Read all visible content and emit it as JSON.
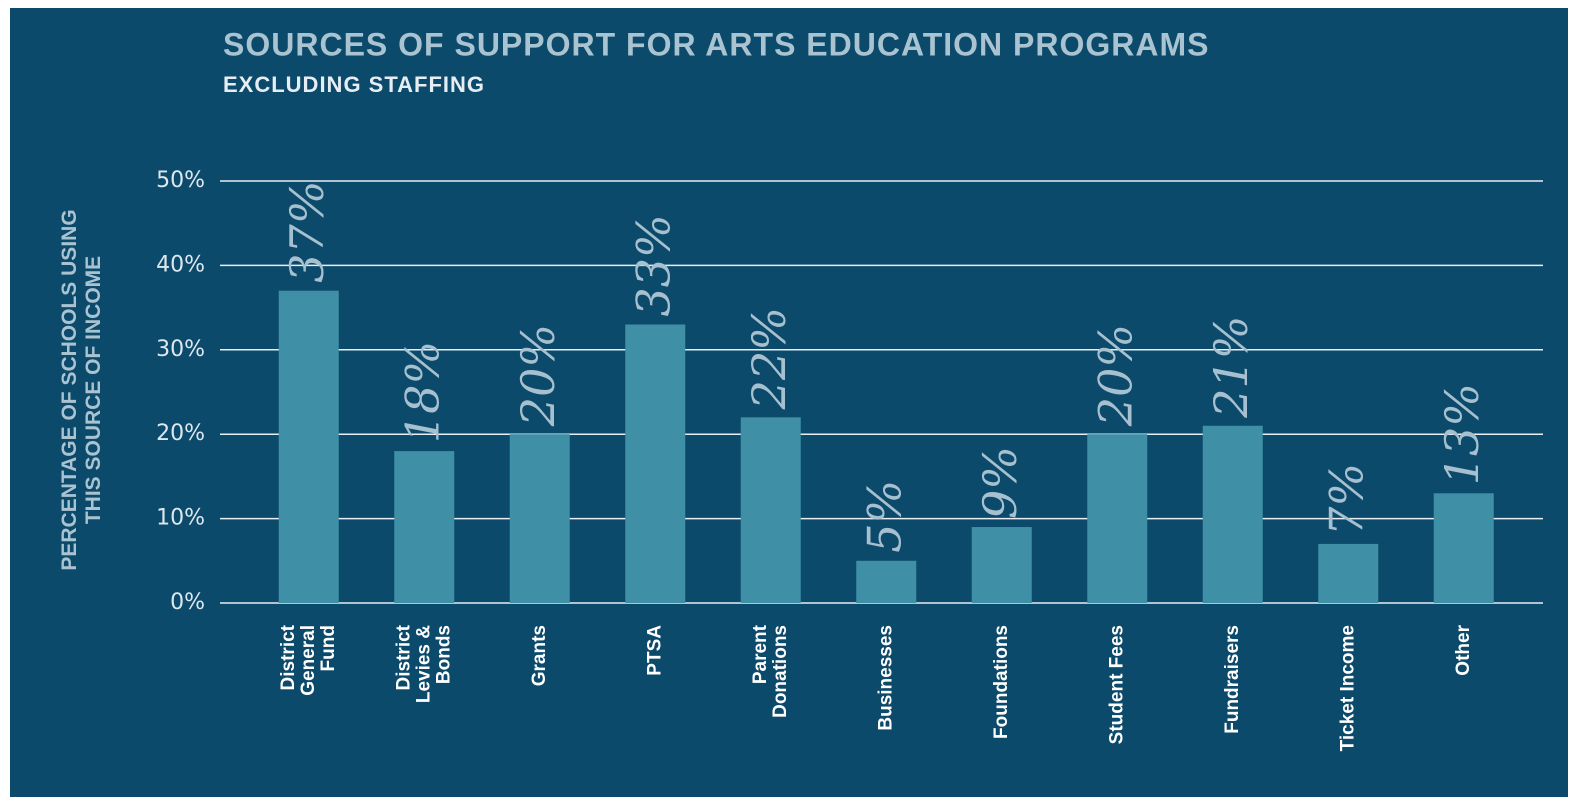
{
  "chart_data": {
    "type": "bar",
    "title": "SOURCES OF SUPPORT FOR ARTS EDUCATION PROGRAMS",
    "subtitle": "EXCLUDING STAFFING",
    "y_label": "PERCENTAGE OF SCHOOLS USING\nTHIS SOURCE OF INCOME",
    "categories": [
      "District\nGeneral\nFund",
      "District\nLevies &\nBonds",
      "Grants",
      "PTSA",
      "Parent\nDonations",
      "Businesses",
      "Foundations",
      "Student Fees",
      "Fundraisers",
      "Ticket Income",
      "Other"
    ],
    "values": [
      37,
      18,
      20,
      33,
      22,
      5,
      9,
      20,
      21,
      7,
      13
    ],
    "value_labels": [
      "37%",
      "18%",
      "20%",
      "33%",
      "22%",
      "5%",
      "9%",
      "20%",
      "21%",
      "7%",
      "13%"
    ],
    "color": "#3f8fa6",
    "ylim": [
      0,
      50
    ],
    "yticks": [
      {
        "value": 0,
        "label": "0%"
      },
      {
        "value": 10,
        "label": "10%"
      },
      {
        "value": 20,
        "label": "20%"
      },
      {
        "value": 30,
        "label": "30%"
      },
      {
        "value": 40,
        "label": "40%"
      },
      {
        "value": 50,
        "label": "50%"
      }
    ],
    "grid": true
  }
}
